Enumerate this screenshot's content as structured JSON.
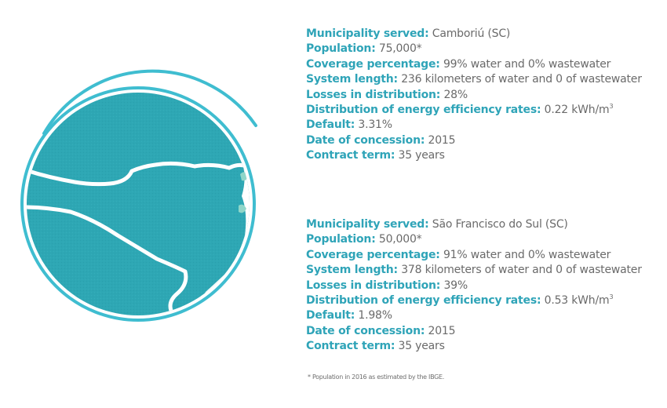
{
  "municipalities": [
    {
      "municipality_label": "Municipality served:",
      "municipality_value": "Camboriú (SC)",
      "population_label": "Population:",
      "population_value": "75,000*",
      "coverage_label": "Coverage percentage:",
      "coverage_value": "99% water and 0% wastewater",
      "system_length_label": "System length:",
      "system_length_value": "236 kilometers of water and 0 of wastewater",
      "losses_label": "Losses in distribution:",
      "losses_value": "28%",
      "energy_label": "Distribution of energy efficiency rates:",
      "energy_value": "0.22 kWh/m",
      "energy_unit_sup": "3",
      "default_label": "Default:",
      "default_value": "3.31%",
      "concession_label": "Date of concession:",
      "concession_value": "2015",
      "contract_label": "Contract term:",
      "contract_value": "35 years"
    },
    {
      "municipality_label": "Municipality served:",
      "municipality_value": "São Francisco do Sul (SC)",
      "population_label": "Population:",
      "population_value": "50,000*",
      "coverage_label": "Coverage percentage:",
      "coverage_value": "91% water and 0% wastewater",
      "system_length_label": "System length:",
      "system_length_value": "378 kilometers of water and 0 of wastewater",
      "losses_label": "Losses in distribution:",
      "losses_value": "39%",
      "energy_label": "Distribution of energy efficiency rates:",
      "energy_value": "0.53 kWh/m",
      "energy_unit_sup": "3",
      "default_label": "Default:",
      "default_value": "1.98%",
      "concession_label": "Date of concession:",
      "concession_value": "2015",
      "contract_label": "Contract term:",
      "contract_value": "35 years"
    }
  ],
  "footnote": "* Population in 2016 as estimated by the IBGE.",
  "colors": {
    "label": "#2fa4b8",
    "value": "#6a6a6a",
    "map_fill": "#2ea7b4",
    "ring": "#3fbdd0",
    "border_line": "#ffffff"
  }
}
